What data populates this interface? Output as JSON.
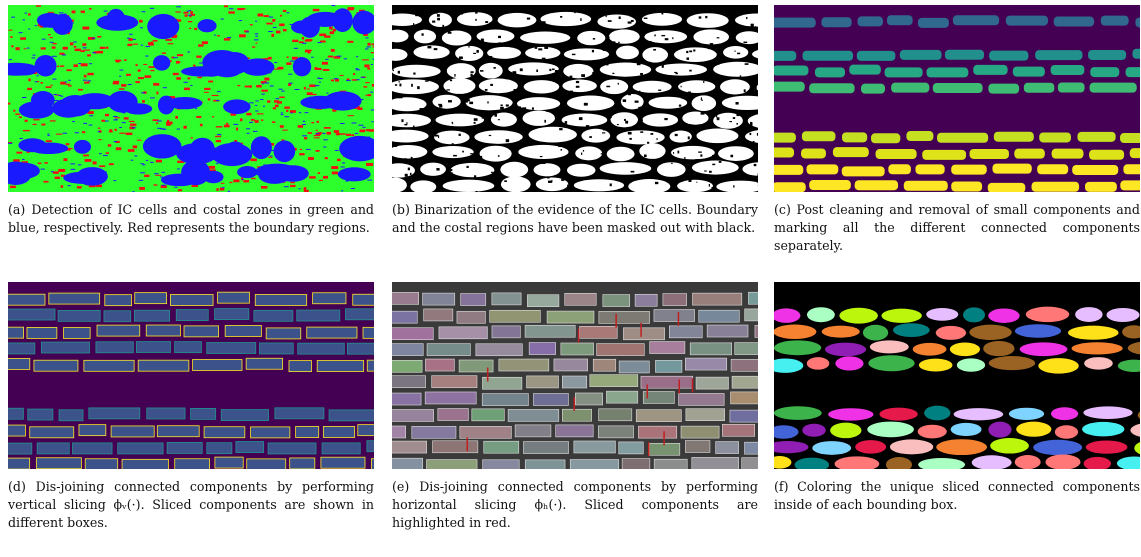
{
  "figure": {
    "panels": [
      {
        "caption": "(a) Detection of IC cells and costal zones in green and blue, respectively. Red represents the boundary regions."
      },
      {
        "caption": "(b) Binarization of the evidence of the IC cells. Boundary and the costal regions have been masked out with black."
      },
      {
        "caption": "(c) Post cleaning and removal of small components and marking all the different connected components separately."
      },
      {
        "caption": "(d) Dis-joining connected components by performing vertical slicing ϕᵥ(·). Sliced components are shown in different boxes."
      },
      {
        "caption": "(e) Dis-joining connected components by performing horizontal slicing ϕₕ(·). Sliced components are highlighted in red."
      },
      {
        "caption": "(f) Coloring the unique sliced connected components inside of each bounding box."
      }
    ]
  }
}
